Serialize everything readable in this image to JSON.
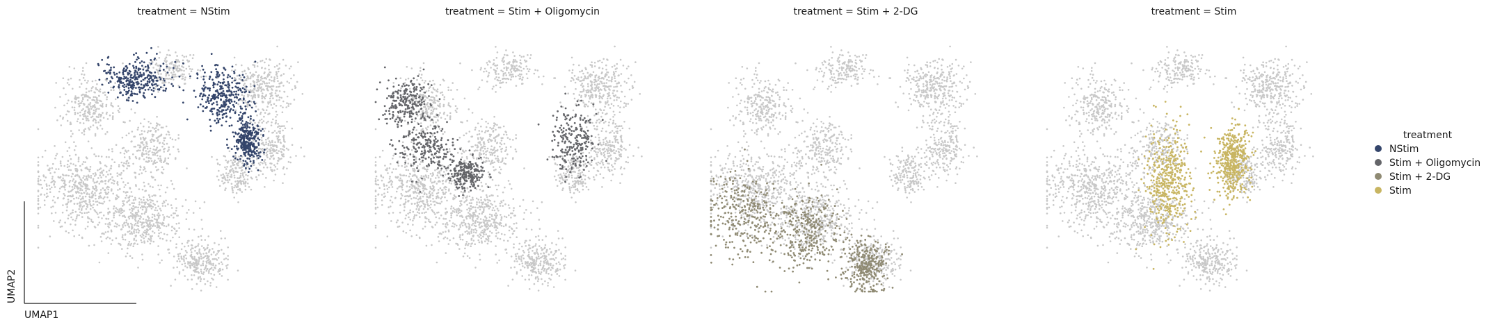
{
  "chart_data": {
    "type": "scatter",
    "facet_variable": "treatment",
    "facets": [
      {
        "title": "treatment = NStim",
        "highlight": "NStim"
      },
      {
        "title": "treatment = Stim + Oligomycin",
        "highlight": "Stim + Oligomycin"
      },
      {
        "title": "treatment = Stim + 2-DG",
        "highlight": "Stim + 2-DG"
      },
      {
        "title": "treatment = Stim",
        "highlight": "Stim"
      }
    ],
    "xlabel": "UMAP1",
    "ylabel": "UMAP2",
    "grid": false,
    "legend": {
      "title": "treatment",
      "placement": "right",
      "entries": [
        {
          "name": "NStim",
          "color": "#34456b"
        },
        {
          "name": "Stim + Oligomycin",
          "color": "#646569"
        },
        {
          "name": "Stim + 2-DG",
          "color": "#8f8a73"
        },
        {
          "name": "Stim",
          "color": "#c8b562"
        }
      ]
    },
    "background_color": "#c8c8c8",
    "series": [
      {
        "name": "NStim",
        "color": "#34456b",
        "regions": [
          {
            "cx": 0.33,
            "cy": 0.82,
            "rx": 0.1,
            "ry": 0.07
          },
          {
            "cx": 0.62,
            "cy": 0.75,
            "rx": 0.08,
            "ry": 0.1
          },
          {
            "cx": 0.7,
            "cy": 0.58,
            "rx": 0.04,
            "ry": 0.08
          }
        ]
      },
      {
        "name": "Stim + Oligomycin",
        "color": "#646569",
        "regions": [
          {
            "cx": 0.1,
            "cy": 0.73,
            "rx": 0.07,
            "ry": 0.08
          },
          {
            "cx": 0.17,
            "cy": 0.56,
            "rx": 0.1,
            "ry": 0.09
          },
          {
            "cx": 0.3,
            "cy": 0.45,
            "rx": 0.05,
            "ry": 0.05
          },
          {
            "cx": 0.66,
            "cy": 0.58,
            "rx": 0.07,
            "ry": 0.12
          }
        ]
      },
      {
        "name": "Stim + 2-DG",
        "color": "#8f8a73",
        "regions": [
          {
            "cx": 0.11,
            "cy": 0.3,
            "rx": 0.12,
            "ry": 0.16
          },
          {
            "cx": 0.32,
            "cy": 0.23,
            "rx": 0.1,
            "ry": 0.13
          },
          {
            "cx": 0.52,
            "cy": 0.1,
            "rx": 0.07,
            "ry": 0.1
          }
        ]
      },
      {
        "name": "Stim",
        "color": "#c8b562",
        "regions": [
          {
            "cx": 0.4,
            "cy": 0.42,
            "rx": 0.07,
            "ry": 0.18
          },
          {
            "cx": 0.62,
            "cy": 0.5,
            "rx": 0.05,
            "ry": 0.12
          }
        ]
      }
    ]
  }
}
